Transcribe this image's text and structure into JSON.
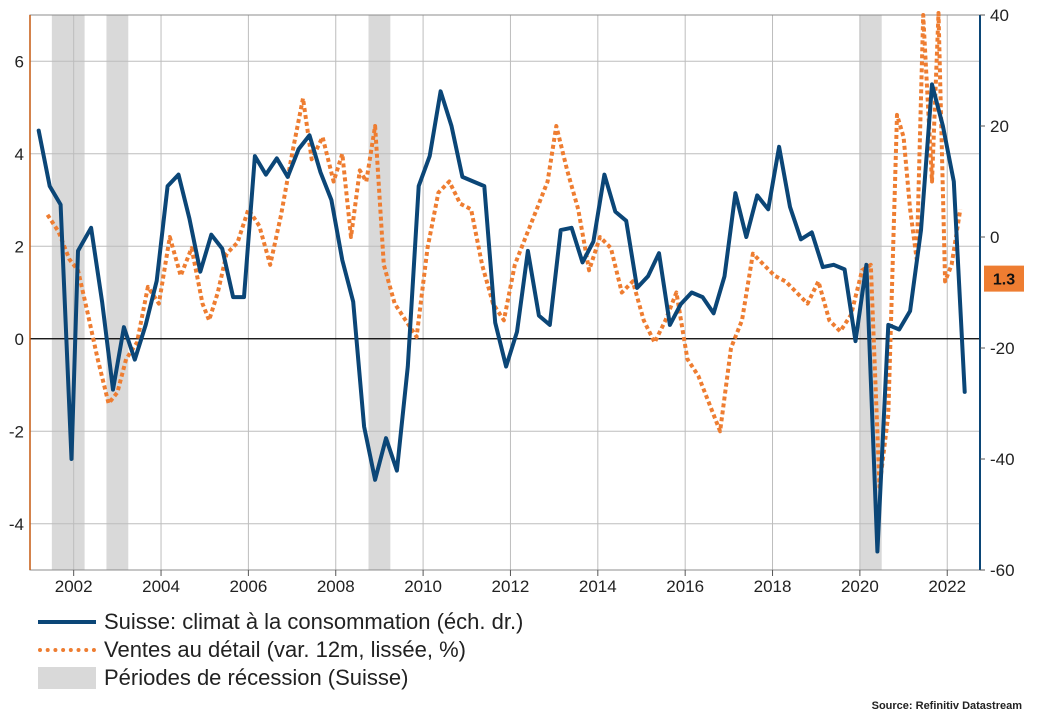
{
  "chart_data": {
    "type": "line",
    "title": "",
    "xlim": [
      2001.0,
      2022.75
    ],
    "x_ticks": [
      2002,
      2004,
      2006,
      2008,
      2010,
      2012,
      2014,
      2016,
      2018,
      2020,
      2022
    ],
    "y_left": {
      "ylim": [
        -5,
        7
      ],
      "ticks": [
        -4,
        -2,
        0,
        2,
        4,
        6
      ]
    },
    "y_right": {
      "ylim": [
        -60,
        40
      ],
      "ticks": [
        -60,
        -40,
        -20,
        0,
        20,
        40
      ]
    },
    "grid": true,
    "legend_placement": "bottom-left",
    "recessions": [
      {
        "start": 2001.5,
        "end": 2002.25
      },
      {
        "start": 2002.75,
        "end": 2003.25
      },
      {
        "start": 2008.75,
        "end": 2009.25
      },
      {
        "start": 2020.0,
        "end": 2020.5
      }
    ],
    "series": [
      {
        "name": "Suisse: climat à la consommation (éch. dr.)",
        "axis": "left",
        "color": "#0b4677",
        "style": "solid",
        "x": [
          2001.2,
          2001.45,
          2001.7,
          2001.95,
          2002.1,
          2002.4,
          2002.65,
          2002.9,
          2003.15,
          2003.4,
          2003.65,
          2003.9,
          2004.15,
          2004.4,
          2004.65,
          2004.9,
          2005.15,
          2005.4,
          2005.65,
          2005.9,
          2006.15,
          2006.4,
          2006.65,
          2006.9,
          2007.15,
          2007.4,
          2007.65,
          2007.9,
          2008.15,
          2008.4,
          2008.65,
          2008.9,
          2009.15,
          2009.4,
          2009.65,
          2009.9,
          2010.15,
          2010.4,
          2010.65,
          2010.9,
          2011.15,
          2011.4,
          2011.65,
          2011.9,
          2012.15,
          2012.4,
          2012.65,
          2012.9,
          2013.15,
          2013.4,
          2013.65,
          2013.9,
          2014.15,
          2014.4,
          2014.65,
          2014.9,
          2015.15,
          2015.4,
          2015.65,
          2015.9,
          2016.15,
          2016.4,
          2016.65,
          2016.9,
          2017.15,
          2017.4,
          2017.65,
          2017.9,
          2018.15,
          2018.4,
          2018.65,
          2018.9,
          2019.15,
          2019.4,
          2019.65,
          2019.9,
          2020.15,
          2020.4,
          2020.65,
          2020.9,
          2021.15,
          2021.4,
          2021.65,
          2021.9,
          2022.15,
          2022.4
        ],
        "values": [
          4.5,
          3.3,
          2.9,
          -2.6,
          1.9,
          2.4,
          0.8,
          -1.1,
          0.25,
          -0.45,
          0.3,
          1.25,
          3.3,
          3.55,
          2.6,
          1.45,
          2.25,
          1.95,
          0.9,
          0.9,
          3.95,
          3.55,
          3.9,
          3.5,
          4.1,
          4.4,
          3.6,
          3.0,
          1.7,
          0.8,
          -1.9,
          -3.05,
          -2.15,
          -2.85,
          -0.6,
          3.3,
          3.95,
          5.35,
          4.6,
          3.5,
          3.4,
          3.3,
          0.35,
          -0.6,
          0.15,
          1.9,
          0.5,
          0.3,
          2.35,
          2.4,
          1.65,
          2.1,
          3.55,
          2.75,
          2.55,
          1.1,
          1.35,
          1.85,
          0.3,
          0.75,
          1.0,
          0.9,
          0.55,
          1.35,
          3.15,
          2.2,
          3.1,
          2.8,
          4.15,
          2.85,
          2.15,
          2.3,
          1.55,
          1.6,
          1.5,
          -0.05,
          1.6,
          -4.6,
          0.3,
          0.2,
          0.6,
          2.35,
          5.5,
          4.6,
          3.4,
          -1.15
        ]
      },
      {
        "name": "Ventes au détail (var. 12m, lissée, %)",
        "axis": "right",
        "color": "#ee7d31",
        "style": "dotted",
        "x": [
          2001.4,
          2001.65,
          2001.9,
          2002.1,
          2002.3,
          2002.55,
          2002.8,
          2003.0,
          2003.2,
          2003.45,
          2003.7,
          2003.95,
          2004.2,
          2004.45,
          2004.7,
          2004.95,
          2005.1,
          2005.3,
          2005.5,
          2005.75,
          2006.0,
          2006.25,
          2006.5,
          2006.75,
          2007.0,
          2007.25,
          2007.45,
          2007.7,
          2007.95,
          2008.15,
          2008.35,
          2008.55,
          2008.7,
          2008.9,
          2009.1,
          2009.35,
          2009.6,
          2009.85,
          2010.1,
          2010.35,
          2010.6,
          2010.85,
          2011.1,
          2011.35,
          2011.6,
          2011.85,
          2012.1,
          2012.35,
          2012.6,
          2012.85,
          2013.05,
          2013.3,
          2013.55,
          2013.8,
          2014.05,
          2014.3,
          2014.55,
          2014.8,
          2015.05,
          2015.3,
          2015.55,
          2015.8,
          2016.05,
          2016.3,
          2016.55,
          2016.8,
          2017.05,
          2017.3,
          2017.55,
          2017.8,
          2018.05,
          2018.3,
          2018.55,
          2018.8,
          2019.05,
          2019.3,
          2019.55,
          2019.8,
          2020.05,
          2020.25,
          2020.45,
          2020.65,
          2020.85,
          2021.0,
          2021.15,
          2021.3,
          2021.45,
          2021.65,
          2021.8,
          2021.95,
          2022.1,
          2022.3
        ],
        "values": [
          4,
          1,
          -4,
          -6,
          -13,
          -22,
          -30,
          -28,
          -22,
          -19,
          -9,
          -12,
          0,
          -7,
          -2,
          -12,
          -15,
          -10,
          -3,
          -1,
          5,
          2,
          -5,
          4,
          15,
          25,
          14,
          18,
          10,
          15,
          0,
          12,
          10,
          20,
          -5,
          -12,
          -15,
          -18,
          -2,
          8,
          10,
          6,
          5,
          -5,
          -12,
          -15,
          -5,
          0,
          5,
          10,
          20,
          12,
          5,
          -6,
          0,
          -2,
          -10,
          -8,
          -15,
          -19,
          -15,
          -10,
          -22,
          -25,
          -30,
          -35,
          -20,
          -15,
          -3,
          -5,
          -7,
          -8,
          -10,
          -12,
          -8,
          -15,
          -17,
          -14,
          -6,
          -5,
          -45,
          -32,
          22,
          18,
          5,
          -4,
          40,
          10,
          41,
          -8,
          -5,
          5
        ]
      }
    ],
    "annotations": [
      {
        "label": "1.3",
        "axis": "left",
        "value": 1.3,
        "color": "#ee7d31"
      }
    ]
  },
  "legend": {
    "items": [
      {
        "label": "Suisse: climat à la consommation (éch. dr.)",
        "kind": "solid",
        "color": "#0b4677"
      },
      {
        "label": "Ventes au détail (var. 12m, lissée, %)",
        "kind": "dotted",
        "color": "#ee7d31"
      },
      {
        "label": "Périodes de récession (Suisse)",
        "kind": "band",
        "color": "#d9d9d9"
      }
    ]
  },
  "source": "Source: Refinitiv Datastream"
}
